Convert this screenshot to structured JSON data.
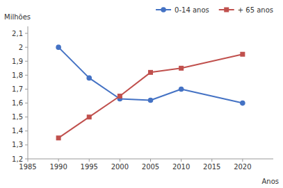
{
  "chart_data": {
    "type": "line",
    "x_label": "Anos",
    "y_label": "Milhões",
    "x": [
      1990,
      1995,
      2000,
      2005,
      2010,
      2020
    ],
    "series": [
      {
        "name": "0-14 anos",
        "color": "#4472c4",
        "marker": "circle",
        "values": [
          2.0,
          1.78,
          1.63,
          1.62,
          1.7,
          1.6
        ]
      },
      {
        "name": "+ 65 anos",
        "color": "#c0504d",
        "marker": "square",
        "values": [
          1.35,
          1.5,
          1.65,
          1.82,
          1.85,
          1.95
        ]
      }
    ],
    "xlim": [
      1985,
      2025
    ],
    "xticks": [
      1985,
      1990,
      1995,
      2000,
      2005,
      2010,
      2015,
      2020
    ],
    "ylim": [
      1.2,
      2.15
    ],
    "yticks": [
      {
        "value": 1.2,
        "label": "1,2"
      },
      {
        "value": 1.3,
        "label": "1,3"
      },
      {
        "value": 1.4,
        "label": "1,4"
      },
      {
        "value": 1.5,
        "label": "1,5"
      },
      {
        "value": 1.6,
        "label": "1,6"
      },
      {
        "value": 1.7,
        "label": "1,7"
      },
      {
        "value": 1.8,
        "label": "1,8"
      },
      {
        "value": 1.9,
        "label": "1,9"
      },
      {
        "value": 2.0,
        "label": "2"
      },
      {
        "value": 2.1,
        "label": "2,1"
      }
    ],
    "grid": false,
    "legend": "upper right"
  }
}
